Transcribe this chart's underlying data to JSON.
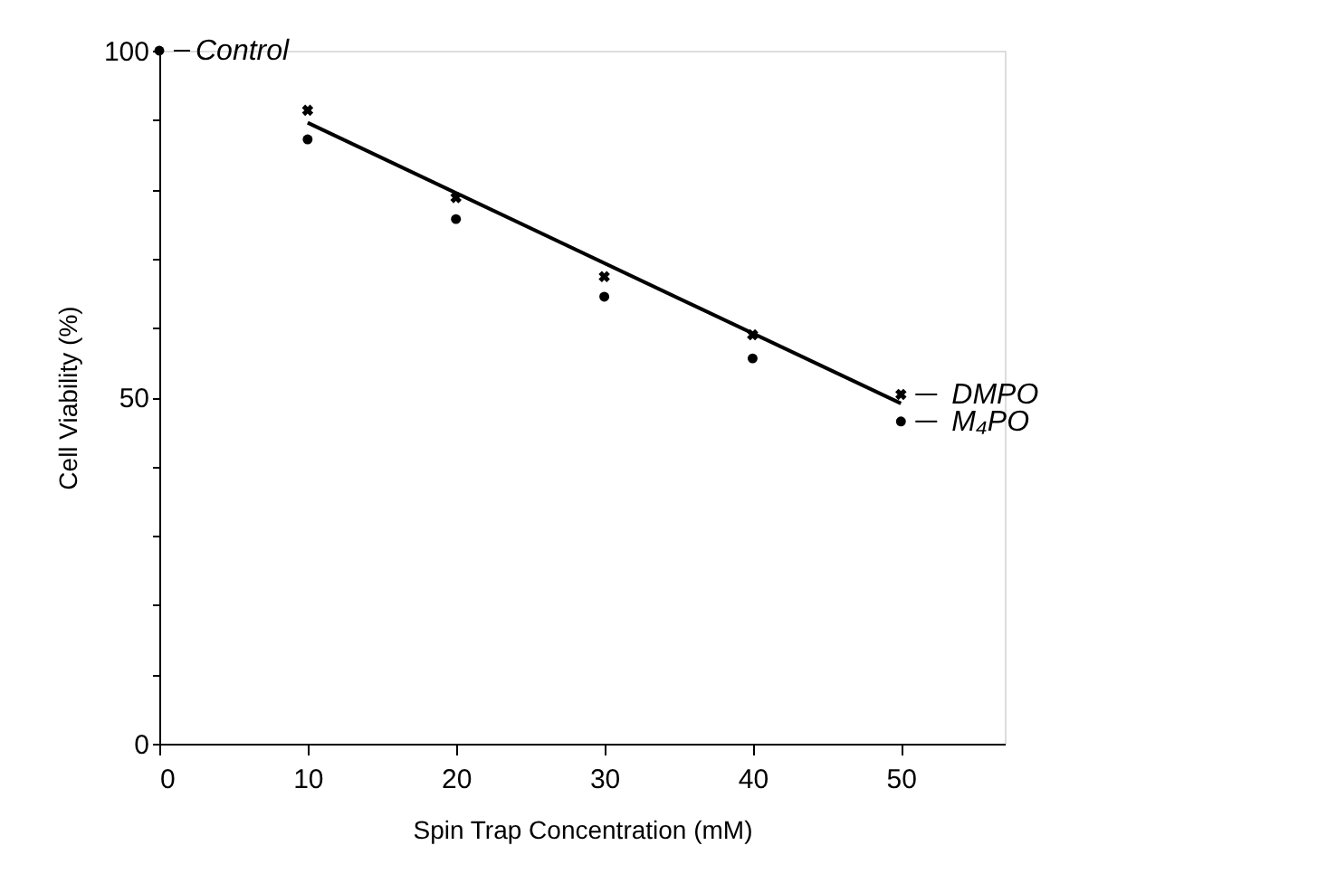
{
  "chart_data": {
    "type": "scatter",
    "xlabel": "Spin Trap Concentration (mM)",
    "ylabel": "Cell Viability (%)",
    "xlim": [
      0,
      57
    ],
    "xticks": [
      0,
      10,
      20,
      30,
      40,
      50
    ],
    "ylim": [
      0,
      100
    ],
    "yticks": [
      0,
      {
        "value": 10,
        "label": null
      },
      {
        "value": 20,
        "label": null
      },
      {
        "value": 30,
        "label": null
      },
      {
        "value": 40,
        "label": null
      },
      50,
      {
        "value": 60,
        "label": null
      },
      {
        "value": 70,
        "label": null
      },
      {
        "value": 80,
        "label": null
      },
      {
        "value": 90,
        "label": null
      },
      100
    ],
    "grid": false,
    "legend": "right",
    "series": [
      {
        "name": "DMPO",
        "color": "#000000",
        "marker": "cross",
        "x": [
          10,
          20,
          30,
          40,
          50
        ],
        "values": [
          91.4,
          78.8,
          67.4,
          59.0,
          50.4
        ]
      },
      {
        "name": "M₄PO",
        "color": "#000000",
        "marker": "circle",
        "x": [
          10,
          20,
          30,
          40,
          50
        ],
        "values": [
          87.2,
          75.7,
          64.5,
          55.6,
          46.5
        ]
      },
      {
        "name": "Control",
        "color": "#000000",
        "marker": "circle",
        "x": [
          0
        ],
        "values": [
          100
        ]
      },
      {
        "type": "line",
        "color": "#000000",
        "line_style": "solid",
        "marker": "none",
        "x": [
          10,
          50
        ],
        "values": [
          89.6,
          49.1
        ]
      }
    ]
  }
}
